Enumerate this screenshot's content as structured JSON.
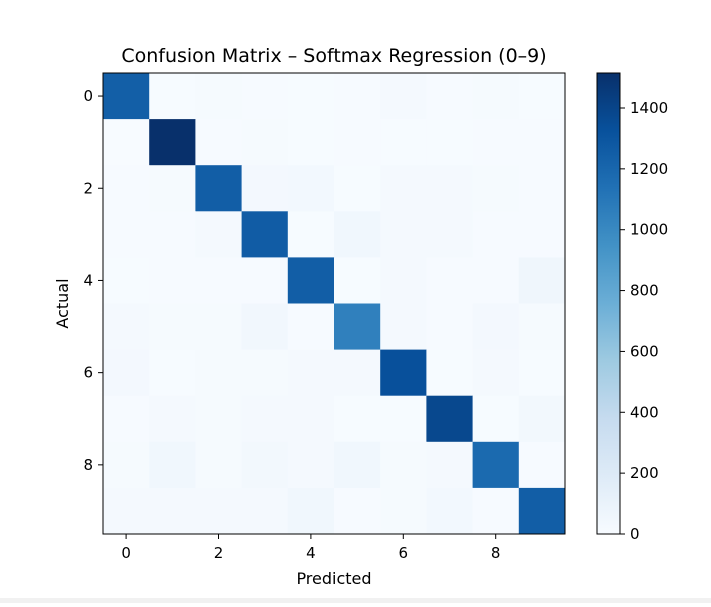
{
  "chart_data": {
    "type": "heatmap",
    "title": "Confusion Matrix – Softmax Regression (0–9)",
    "xlabel": "Predicted",
    "ylabel": "Actual",
    "x_ticks": [
      "0",
      "2",
      "4",
      "6",
      "8"
    ],
    "y_ticks": [
      "0",
      "2",
      "4",
      "6",
      "8"
    ],
    "categories": [
      "0",
      "1",
      "2",
      "3",
      "4",
      "5",
      "6",
      "7",
      "8",
      "9"
    ],
    "matrix": [
      [
        1240,
        5,
        12,
        10,
        5,
        10,
        25,
        8,
        15,
        5
      ],
      [
        0,
        1515,
        10,
        15,
        5,
        10,
        5,
        5,
        10,
        10
      ],
      [
        10,
        15,
        1250,
        30,
        35,
        5,
        25,
        20,
        15,
        10
      ],
      [
        10,
        10,
        25,
        1260,
        5,
        50,
        20,
        20,
        10,
        10
      ],
      [
        5,
        10,
        10,
        10,
        1250,
        5,
        20,
        10,
        10,
        60
      ],
      [
        25,
        15,
        15,
        45,
        10,
        1050,
        20,
        10,
        30,
        15
      ],
      [
        30,
        5,
        15,
        15,
        20,
        25,
        1330,
        5,
        20,
        5
      ],
      [
        10,
        20,
        15,
        25,
        25,
        5,
        5,
        1380,
        5,
        40
      ],
      [
        15,
        50,
        15,
        40,
        20,
        50,
        15,
        20,
        1180,
        10
      ],
      [
        20,
        20,
        20,
        20,
        50,
        10,
        15,
        35,
        10,
        1250
      ]
    ],
    "colorbar": {
      "min": 0,
      "max": 1515,
      "ticks": [
        0,
        200,
        400,
        600,
        800,
        1000,
        1200,
        1400
      ],
      "tick_labels": [
        "0",
        "200",
        "400",
        "600",
        "800",
        "1000",
        "1200",
        "1400"
      ],
      "colormap": "Blues"
    }
  }
}
